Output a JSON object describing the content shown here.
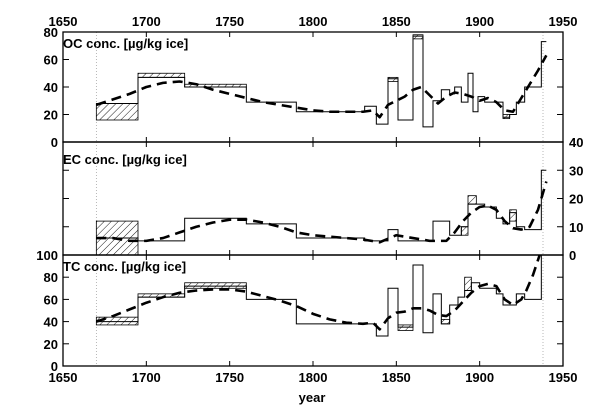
{
  "chart_data": [
    {
      "type": "line",
      "title": "OC conc. [µg/kg ice]",
      "xlabel": "",
      "ylabel": "",
      "xlim": [
        1650,
        1950
      ],
      "ylim": [
        0,
        80
      ],
      "x_ticks": [
        "1650",
        "1700",
        "1750",
        "1800",
        "1850",
        "1900",
        "1950"
      ],
      "y_ticks": [
        "0",
        "20",
        "40",
        "60",
        "80"
      ],
      "x_tick_side": "top",
      "y_axis_side": "left",
      "grid": false,
      "steps": [
        {
          "x0": 1670,
          "x1": 1695,
          "y": 28
        },
        {
          "x0": 1695,
          "x1": 1723,
          "y": 47
        },
        {
          "x0": 1723,
          "x1": 1760,
          "y": 40
        },
        {
          "x0": 1760,
          "x1": 1790,
          "y": 29
        },
        {
          "x0": 1790,
          "x1": 1831,
          "y": 22
        },
        {
          "x0": 1831,
          "x1": 1838,
          "y": 26
        },
        {
          "x0": 1838,
          "x1": 1845,
          "y": 13
        },
        {
          "x0": 1845,
          "x1": 1851,
          "y": 46
        },
        {
          "x0": 1851,
          "x1": 1860,
          "y": 16
        },
        {
          "x0": 1860,
          "x1": 1866,
          "y": 77
        },
        {
          "x0": 1866,
          "x1": 1872,
          "y": 11
        },
        {
          "x0": 1872,
          "x1": 1877,
          "y": 30
        },
        {
          "x0": 1877,
          "x1": 1882,
          "y": 38
        },
        {
          "x0": 1882,
          "x1": 1885,
          "y": 35
        },
        {
          "x0": 1885,
          "x1": 1889,
          "y": 40
        },
        {
          "x0": 1889,
          "x1": 1893,
          "y": 29
        },
        {
          "x0": 1893,
          "x1": 1896,
          "y": 50
        },
        {
          "x0": 1896,
          "x1": 1899,
          "y": 22
        },
        {
          "x0": 1899,
          "x1": 1903,
          "y": 33
        },
        {
          "x0": 1903,
          "x1": 1914,
          "y": 29
        },
        {
          "x0": 1914,
          "x1": 1918,
          "y": 18
        },
        {
          "x0": 1918,
          "x1": 1922,
          "y": 20
        },
        {
          "x0": 1922,
          "x1": 1927,
          "y": 29
        },
        {
          "x0": 1927,
          "x1": 1937,
          "y": 40
        },
        {
          "x0": 1937,
          "x1": 1940,
          "y": 73
        }
      ],
      "hatched_bands": [
        {
          "x0": 1670,
          "x1": 1695,
          "y0": 16,
          "y1": 28
        },
        {
          "x0": 1695,
          "x1": 1723,
          "y0": 47,
          "y1": 50
        },
        {
          "x0": 1723,
          "x1": 1760,
          "y0": 40,
          "y1": 42
        },
        {
          "x0": 1845,
          "x1": 1851,
          "y0": 44,
          "y1": 47
        },
        {
          "x0": 1860,
          "x1": 1866,
          "y0": 75,
          "y1": 78
        },
        {
          "x0": 1914,
          "x1": 1918,
          "y0": 17,
          "y1": 20
        }
      ],
      "smooth": {
        "x": [
          1670,
          1680,
          1690,
          1700,
          1710,
          1720,
          1730,
          1740,
          1750,
          1760,
          1770,
          1780,
          1790,
          1800,
          1810,
          1820,
          1830,
          1836,
          1840,
          1845,
          1850,
          1855,
          1860,
          1865,
          1870,
          1875,
          1880,
          1885,
          1890,
          1895,
          1900,
          1905,
          1910,
          1915,
          1920,
          1925,
          1930,
          1935,
          1940
        ],
        "y": [
          27,
          31,
          35,
          40,
          43,
          44,
          42,
          38,
          35,
          32,
          29,
          27,
          25,
          23,
          22,
          22,
          22,
          23,
          18,
          27,
          30,
          33,
          38,
          40,
          34,
          28,
          33,
          36,
          35,
          33,
          30,
          32,
          29,
          23,
          22,
          32,
          42,
          52,
          63
        ]
      }
    },
    {
      "type": "line",
      "title": "EC conc. [µg/kg ice]",
      "xlabel": "",
      "ylabel": "",
      "xlim": [
        1650,
        1950
      ],
      "ylim": [
        0,
        40
      ],
      "y_ticks": [
        "0",
        "10",
        "20",
        "30",
        "40"
      ],
      "y_axis_side": "right",
      "grid": false,
      "steps": [
        {
          "x0": 1670,
          "x1": 1695,
          "y": 6
        },
        {
          "x0": 1695,
          "x1": 1723,
          "y": 5
        },
        {
          "x0": 1723,
          "x1": 1760,
          "y": 13
        },
        {
          "x0": 1760,
          "x1": 1790,
          "y": 11
        },
        {
          "x0": 1790,
          "x1": 1831,
          "y": 6
        },
        {
          "x0": 1831,
          "x1": 1845,
          "y": 5
        },
        {
          "x0": 1845,
          "x1": 1851,
          "y": 9
        },
        {
          "x0": 1851,
          "x1": 1872,
          "y": 5
        },
        {
          "x0": 1872,
          "x1": 1882,
          "y": 12
        },
        {
          "x0": 1882,
          "x1": 1889,
          "y": 7
        },
        {
          "x0": 1889,
          "x1": 1893,
          "y": 10
        },
        {
          "x0": 1893,
          "x1": 1898,
          "y": 18
        },
        {
          "x0": 1898,
          "x1": 1903,
          "y": 18
        },
        {
          "x0": 1903,
          "x1": 1910,
          "y": 17
        },
        {
          "x0": 1910,
          "x1": 1914,
          "y": 13
        },
        {
          "x0": 1914,
          "x1": 1918,
          "y": 11
        },
        {
          "x0": 1918,
          "x1": 1922,
          "y": 15
        },
        {
          "x0": 1922,
          "x1": 1927,
          "y": 10
        },
        {
          "x0": 1927,
          "x1": 1937,
          "y": 9
        },
        {
          "x0": 1937,
          "x1": 1940,
          "y": 30
        }
      ],
      "hatched_bands": [
        {
          "x0": 1670,
          "x1": 1695,
          "y0": 0,
          "y1": 12
        },
        {
          "x0": 1893,
          "x1": 1898,
          "y0": 18,
          "y1": 21
        },
        {
          "x0": 1918,
          "x1": 1922,
          "y0": 12,
          "y1": 16
        },
        {
          "x0": 1889,
          "x1": 1893,
          "y0": 7,
          "y1": 10
        }
      ],
      "smooth": {
        "x": [
          1670,
          1680,
          1690,
          1700,
          1710,
          1720,
          1730,
          1740,
          1750,
          1760,
          1770,
          1780,
          1790,
          1800,
          1810,
          1820,
          1830,
          1840,
          1850,
          1860,
          1870,
          1880,
          1885,
          1890,
          1895,
          1900,
          1905,
          1910,
          1915,
          1920,
          1925,
          1930,
          1935,
          1940
        ],
        "y": [
          6,
          6,
          5,
          5,
          6,
          8,
          10,
          11.5,
          12.5,
          12.5,
          11.5,
          10,
          8,
          7,
          6.5,
          6,
          5.5,
          4.5,
          7,
          6,
          5,
          5,
          8,
          12,
          15,
          17,
          17.5,
          16,
          12,
          9.5,
          9,
          10,
          16,
          26
        ]
      }
    },
    {
      "type": "line",
      "title": "TC conc. [µg/kg ice]",
      "xlabel": "year",
      "ylabel": "",
      "xlim": [
        1650,
        1950
      ],
      "ylim": [
        0,
        100
      ],
      "x_ticks": [
        "1650",
        "1700",
        "1750",
        "1800",
        "1850",
        "1900",
        "1950"
      ],
      "y_ticks": [
        "0",
        "20",
        "40",
        "60",
        "80",
        "100"
      ],
      "x_tick_side": "bottom",
      "y_axis_side": "left",
      "grid": false,
      "steps": [
        {
          "x0": 1670,
          "x1": 1695,
          "y": 40
        },
        {
          "x0": 1695,
          "x1": 1723,
          "y": 62
        },
        {
          "x0": 1723,
          "x1": 1760,
          "y": 72
        },
        {
          "x0": 1760,
          "x1": 1790,
          "y": 60
        },
        {
          "x0": 1790,
          "x1": 1831,
          "y": 38
        },
        {
          "x0": 1831,
          "x1": 1838,
          "y": 38
        },
        {
          "x0": 1838,
          "x1": 1845,
          "y": 27
        },
        {
          "x0": 1845,
          "x1": 1851,
          "y": 70
        },
        {
          "x0": 1851,
          "x1": 1860,
          "y": 35
        },
        {
          "x0": 1860,
          "x1": 1866,
          "y": 91
        },
        {
          "x0": 1866,
          "x1": 1872,
          "y": 30
        },
        {
          "x0": 1872,
          "x1": 1877,
          "y": 65
        },
        {
          "x0": 1877,
          "x1": 1882,
          "y": 38
        },
        {
          "x0": 1882,
          "x1": 1887,
          "y": 55
        },
        {
          "x0": 1887,
          "x1": 1891,
          "y": 62
        },
        {
          "x0": 1891,
          "x1": 1895,
          "y": 68
        },
        {
          "x0": 1895,
          "x1": 1900,
          "y": 75
        },
        {
          "x0": 1900,
          "x1": 1905,
          "y": 70
        },
        {
          "x0": 1905,
          "x1": 1910,
          "y": 70
        },
        {
          "x0": 1910,
          "x1": 1914,
          "y": 65
        },
        {
          "x0": 1914,
          "x1": 1918,
          "y": 55
        },
        {
          "x0": 1918,
          "x1": 1922,
          "y": 55
        },
        {
          "x0": 1922,
          "x1": 1927,
          "y": 65
        },
        {
          "x0": 1927,
          "x1": 1937,
          "y": 60
        },
        {
          "x0": 1937,
          "x1": 1940,
          "y": 100
        }
      ],
      "hatched_bands": [
        {
          "x0": 1670,
          "x1": 1695,
          "y0": 37,
          "y1": 44
        },
        {
          "x0": 1695,
          "x1": 1723,
          "y0": 62,
          "y1": 65
        },
        {
          "x0": 1723,
          "x1": 1760,
          "y0": 70,
          "y1": 75
        },
        {
          "x0": 1851,
          "x1": 1860,
          "y0": 32,
          "y1": 37
        },
        {
          "x0": 1877,
          "x1": 1882,
          "y0": 38,
          "y1": 42
        },
        {
          "x0": 1891,
          "x1": 1895,
          "y0": 68,
          "y1": 80
        }
      ],
      "smooth": {
        "x": [
          1670,
          1680,
          1690,
          1700,
          1710,
          1720,
          1730,
          1740,
          1750,
          1760,
          1770,
          1780,
          1790,
          1800,
          1810,
          1820,
          1830,
          1836,
          1840,
          1845,
          1850,
          1855,
          1860,
          1865,
          1870,
          1875,
          1880,
          1885,
          1890,
          1895,
          1900,
          1905,
          1910,
          1915,
          1920,
          1925,
          1928,
          1932,
          1936
        ],
        "y": [
          40,
          45,
          51,
          57,
          62,
          66,
          68,
          69,
          69,
          67,
          63,
          59,
          54,
          47,
          42,
          39,
          38,
          39,
          33,
          43,
          48,
          49,
          52,
          52,
          50,
          46,
          45,
          50,
          58,
          66,
          72,
          74,
          72,
          60,
          55,
          60,
          68,
          82,
          100
        ]
      }
    }
  ]
}
